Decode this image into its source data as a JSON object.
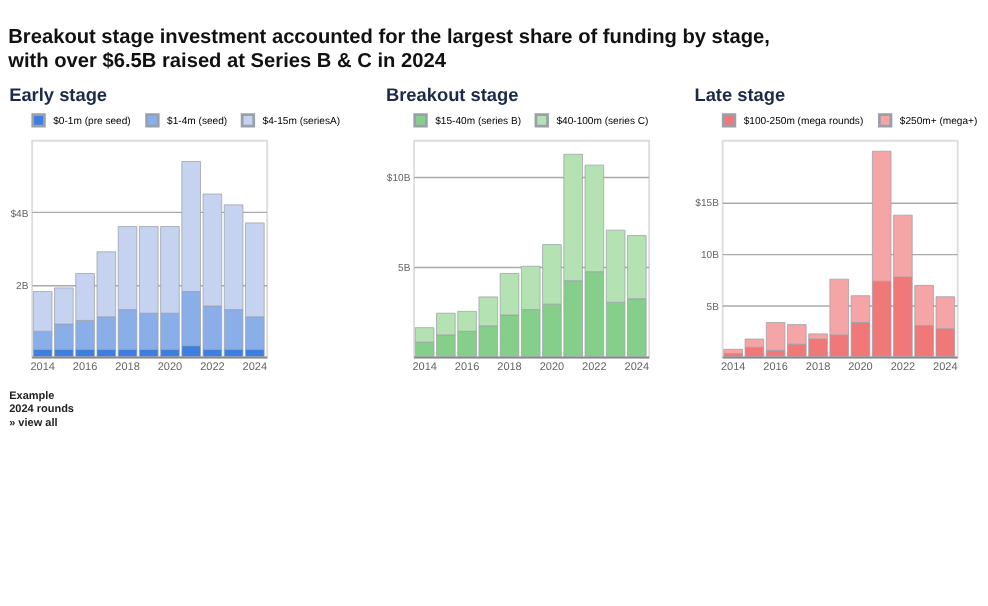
{
  "chart_data": [
    {
      "type": "other",
      "title": "Breakout stage investment accounted for the largest share of funding by stage,\nwith over $6.5B raised at Series B & C in 2024"
    },
    {
      "type": "bar",
      "title": "Early stage",
      "stacked": true,
      "legend": "top",
      "grid": "y",
      "categories": [
        "2014",
        null,
        "2016",
        null,
        "2018",
        null,
        "2020",
        null,
        "2022",
        null,
        "2024"
      ],
      "ylim": [
        0,
        6
      ],
      "yticks": [
        {
          "value": 2,
          "label": "2B"
        },
        {
          "value": 4,
          "label": "$4B"
        }
      ],
      "series": [
        {
          "name": "$0-1m (pre seed)",
          "color": "#3d7fe0",
          "values": [
            0.2,
            0.2,
            0.2,
            0.2,
            0.2,
            0.2,
            0.2,
            0.3,
            0.2,
            0.2,
            0.2
          ]
        },
        {
          "name": "$1-4m (seed)",
          "color": "#8aaee8",
          "values": [
            0.5,
            0.7,
            0.8,
            0.9,
            1.1,
            1.0,
            1.0,
            1.5,
            1.2,
            1.1,
            0.9
          ]
        },
        {
          "name": "$4-15m (seriesA)",
          "color": "#c5d3f0",
          "values": [
            1.1,
            1.0,
            1.3,
            1.8,
            2.3,
            2.4,
            2.4,
            3.6,
            3.1,
            2.9,
            2.6
          ]
        }
      ],
      "annotations": [
        "Example\n2024 rounds",
        "» view all"
      ]
    },
    {
      "type": "bar",
      "title": "Breakout stage",
      "stacked": true,
      "legend": "top",
      "grid": "y",
      "categories": [
        "2014",
        null,
        "2016",
        null,
        "2018",
        null,
        "2020",
        null,
        "2022",
        null,
        "2024"
      ],
      "ylim": [
        0,
        12
      ],
      "yticks": [
        {
          "value": 5,
          "label": "5B"
        },
        {
          "value": 10,
          "label": "$10B"
        }
      ],
      "series": [
        {
          "name": "$15-40m (series B)",
          "color": "#86cf8a",
          "values": [
            0.8,
            1.2,
            1.4,
            1.7,
            2.3,
            2.6,
            2.9,
            4.2,
            4.7,
            3.0,
            3.2
          ]
        },
        {
          "name": "$40-100m (series C)",
          "color": "#b4e2b2",
          "values": [
            0.8,
            1.2,
            1.1,
            1.6,
            2.3,
            2.4,
            3.3,
            7.0,
            5.9,
            4.0,
            3.5
          ]
        }
      ]
    },
    {
      "type": "bar",
      "title": "Late stage",
      "stacked": true,
      "legend": "top",
      "grid": "y",
      "categories": [
        "2014",
        null,
        "2016",
        null,
        "2018",
        null,
        "2020",
        null,
        "2022",
        null,
        "2024"
      ],
      "ylim": [
        0,
        21
      ],
      "yticks": [
        {
          "value": 5,
          "label": "5B"
        },
        {
          "value": 10,
          "label": "10B"
        },
        {
          "value": 15,
          "label": "$15B"
        }
      ],
      "series": [
        {
          "name": "$100-250m (mega rounds)",
          "color": "#f07878",
          "values": [
            0.3,
            0.9,
            0.6,
            1.2,
            1.7,
            2.1,
            3.3,
            7.3,
            7.7,
            3.0,
            2.7
          ]
        },
        {
          "name": "$250m+ (mega+)",
          "color": "#f5a5a5",
          "values": [
            0.4,
            0.8,
            2.7,
            1.9,
            0.5,
            5.4,
            2.6,
            12.6,
            6.0,
            3.9,
            3.1
          ]
        }
      ]
    }
  ]
}
